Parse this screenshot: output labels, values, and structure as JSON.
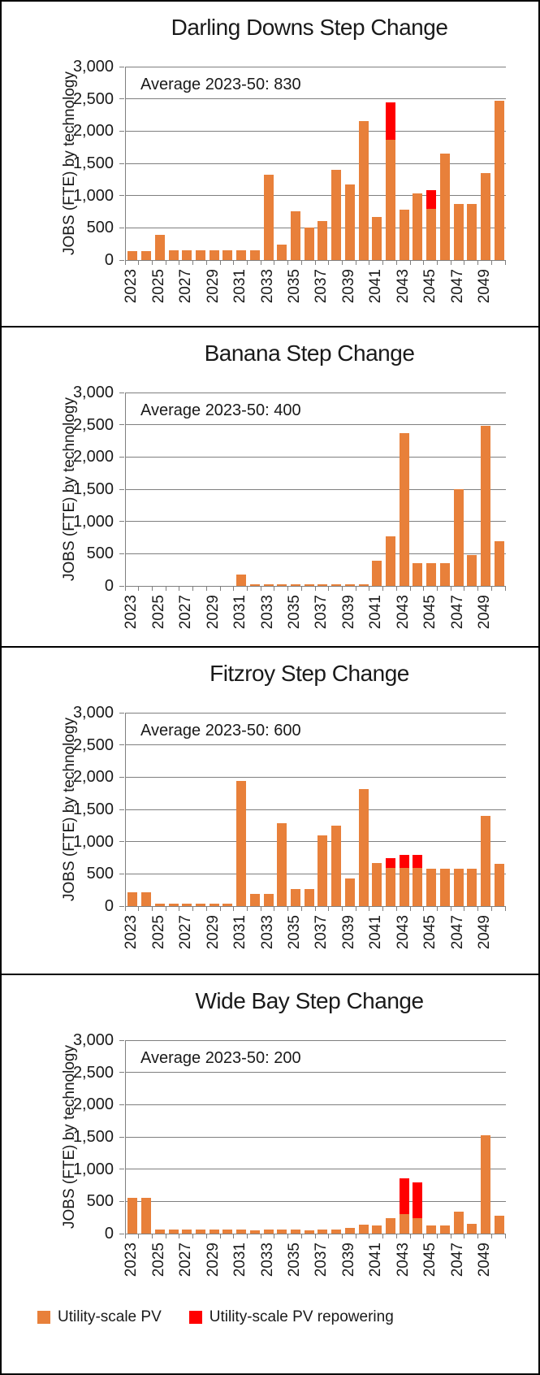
{
  "colors": {
    "pv": "#E8803A",
    "repowering": "#FF0000",
    "grid": "#7F7F7F",
    "text": "#1A1A1A"
  },
  "y_axis": {
    "label": "JOBS (FTE) by technology",
    "max": 3000,
    "ticks": [
      "0",
      "500",
      "1,000",
      "1,500",
      "2,000",
      "2,500",
      "3,000"
    ]
  },
  "x_axis": {
    "year_labels": [
      "2023",
      "2025",
      "2027",
      "2029",
      "2031",
      "2033",
      "2035",
      "2037",
      "2039",
      "2041",
      "2043",
      "2045",
      "2047",
      "2049"
    ]
  },
  "legend": {
    "items": [
      {
        "label": "Utility-scale PV",
        "key": "pv"
      },
      {
        "label": "Utility-scale PV repowering",
        "key": "repowering"
      }
    ]
  },
  "chart_data": [
    {
      "type": "bar",
      "stacked": true,
      "title": "Darling Downs Step Change",
      "annotation": "Average 2023-50: 830",
      "ylabel": "JOBS (FTE) by technology",
      "ylim": [
        0,
        3000
      ],
      "grid": true,
      "categories": [
        2023,
        2024,
        2025,
        2026,
        2027,
        2028,
        2029,
        2030,
        2031,
        2032,
        2033,
        2034,
        2035,
        2036,
        2037,
        2038,
        2039,
        2040,
        2041,
        2042,
        2043,
        2044,
        2045,
        2046,
        2047,
        2048,
        2049,
        2050
      ],
      "series": [
        {
          "name": "Utility-scale PV",
          "color": "#E8803A",
          "values": [
            140,
            140,
            390,
            150,
            150,
            150,
            150,
            150,
            150,
            150,
            1330,
            240,
            760,
            500,
            610,
            1400,
            1175,
            2150,
            670,
            1870,
            780,
            1040,
            790,
            1650,
            870,
            870,
            1350,
            2470
          ]
        },
        {
          "name": "Utility-scale PV repowering",
          "color": "#FF0000",
          "values": [
            0,
            0,
            0,
            0,
            0,
            0,
            0,
            0,
            0,
            0,
            0,
            0,
            0,
            0,
            0,
            0,
            0,
            0,
            0,
            570,
            0,
            0,
            290,
            0,
            0,
            0,
            0,
            0
          ]
        }
      ]
    },
    {
      "type": "bar",
      "stacked": true,
      "title": "Banana Step Change",
      "annotation": "Average 2023-50: 400",
      "ylabel": "JOBS (FTE) by technology",
      "ylim": [
        0,
        3000
      ],
      "grid": true,
      "categories": [
        2023,
        2024,
        2025,
        2026,
        2027,
        2028,
        2029,
        2030,
        2031,
        2032,
        2033,
        2034,
        2035,
        2036,
        2037,
        2038,
        2039,
        2040,
        2041,
        2042,
        2043,
        2044,
        2045,
        2046,
        2047,
        2048,
        2049,
        2050
      ],
      "series": [
        {
          "name": "Utility-scale PV",
          "color": "#E8803A",
          "values": [
            0,
            0,
            0,
            0,
            0,
            0,
            0,
            0,
            180,
            20,
            20,
            20,
            25,
            30,
            30,
            30,
            30,
            30,
            390,
            770,
            2370,
            350,
            350,
            350,
            1500,
            480,
            2480,
            690
          ]
        },
        {
          "name": "Utility-scale PV repowering",
          "color": "#FF0000",
          "values": [
            0,
            0,
            0,
            0,
            0,
            0,
            0,
            0,
            0,
            0,
            0,
            0,
            0,
            0,
            0,
            0,
            0,
            0,
            0,
            0,
            0,
            0,
            0,
            0,
            0,
            0,
            0,
            0
          ]
        }
      ]
    },
    {
      "type": "bar",
      "stacked": true,
      "title": "Fitzroy Step Change",
      "annotation": "Average 2023-50: 600",
      "ylabel": "JOBS (FTE) by technology",
      "ylim": [
        0,
        3000
      ],
      "grid": true,
      "categories": [
        2023,
        2024,
        2025,
        2026,
        2027,
        2028,
        2029,
        2030,
        2031,
        2032,
        2033,
        2034,
        2035,
        2036,
        2037,
        2038,
        2039,
        2040,
        2041,
        2042,
        2043,
        2044,
        2045,
        2046,
        2047,
        2048,
        2049,
        2050
      ],
      "series": [
        {
          "name": "Utility-scale PV",
          "color": "#E8803A",
          "values": [
            220,
            220,
            40,
            40,
            40,
            40,
            40,
            40,
            1940,
            185,
            185,
            1280,
            270,
            270,
            1100,
            1250,
            430,
            1820,
            670,
            590,
            590,
            590,
            580,
            580,
            580,
            580,
            1400,
            660
          ]
        },
        {
          "name": "Utility-scale PV repowering",
          "color": "#FF0000",
          "values": [
            0,
            0,
            0,
            0,
            0,
            0,
            0,
            0,
            0,
            0,
            0,
            0,
            0,
            0,
            0,
            0,
            0,
            0,
            0,
            150,
            200,
            200,
            0,
            0,
            0,
            0,
            0,
            0
          ]
        }
      ]
    },
    {
      "type": "bar",
      "stacked": true,
      "title": "Wide Bay Step Change",
      "annotation": "Average 2023-50: 200",
      "ylabel": "JOBS (FTE) by technology",
      "ylim": [
        0,
        3000
      ],
      "grid": true,
      "categories": [
        2023,
        2024,
        2025,
        2026,
        2027,
        2028,
        2029,
        2030,
        2031,
        2032,
        2033,
        2034,
        2035,
        2036,
        2037,
        2038,
        2039,
        2040,
        2041,
        2042,
        2043,
        2044,
        2045,
        2046,
        2047,
        2048,
        2049,
        2050
      ],
      "series": [
        {
          "name": "Utility-scale PV",
          "color": "#E8803A",
          "values": [
            560,
            550,
            65,
            65,
            65,
            60,
            60,
            60,
            60,
            55,
            60,
            60,
            60,
            55,
            60,
            60,
            90,
            135,
            120,
            240,
            300,
            240,
            120,
            120,
            340,
            150,
            1520,
            280
          ]
        },
        {
          "name": "Utility-scale PV repowering",
          "color": "#FF0000",
          "values": [
            0,
            0,
            0,
            0,
            0,
            0,
            0,
            0,
            0,
            0,
            0,
            0,
            0,
            0,
            0,
            0,
            0,
            0,
            0,
            0,
            560,
            560,
            0,
            0,
            0,
            0,
            0,
            0
          ]
        }
      ]
    }
  ]
}
